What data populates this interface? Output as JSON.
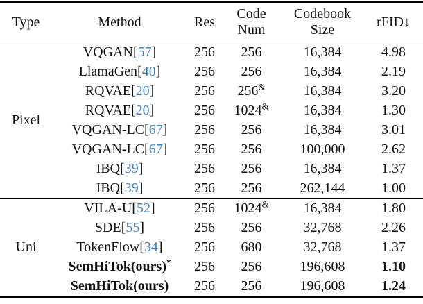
{
  "table": {
    "headers": {
      "type": "Type",
      "method": "Method",
      "res": "Res",
      "code_num": "Code\nNum",
      "codebook_size": "Codebook\nSize",
      "rfid": "rFID↓"
    },
    "groups": {
      "pixel": "Pixel",
      "uni": "Uni"
    },
    "rows": [
      {
        "method": "VQGAN",
        "open": "[",
        "cite": "57",
        "close": "]",
        "sup": "",
        "res": "256",
        "code": "256",
        "code_sup": "",
        "codebook": "16,384",
        "rfid": "4.98"
      },
      {
        "method": "LlamaGen",
        "open": "[",
        "cite": "40",
        "close": "]",
        "sup": "",
        "res": "256",
        "code": "256",
        "code_sup": "",
        "codebook": "16,384",
        "rfid": "2.19"
      },
      {
        "method": "RQVAE",
        "open": "[",
        "cite": "20",
        "close": "]",
        "sup": "",
        "res": "256",
        "code": "256",
        "code_sup": "&",
        "codebook": "16,384",
        "rfid": "3.20"
      },
      {
        "method": "RQVAE",
        "open": "[",
        "cite": "20",
        "close": "]",
        "sup": "",
        "res": "256",
        "code": "1024",
        "code_sup": "&",
        "codebook": "16,384",
        "rfid": "1.30"
      },
      {
        "method": "VQGAN-LC",
        "open": "[",
        "cite": "67",
        "close": "]",
        "sup": "",
        "res": "256",
        "code": "256",
        "code_sup": "",
        "codebook": "16,384",
        "rfid": "3.01"
      },
      {
        "method": "VQGAN-LC",
        "open": "[",
        "cite": "67",
        "close": "]",
        "sup": "",
        "res": "256",
        "code": "256",
        "code_sup": "",
        "codebook": "100,000",
        "rfid": "2.62"
      },
      {
        "method": "IBQ",
        "open": "[",
        "cite": "39",
        "close": "]",
        "sup": "",
        "res": "256",
        "code": "256",
        "code_sup": "",
        "codebook": "16,384",
        "rfid": "1.37"
      },
      {
        "method": "IBQ",
        "open": "[",
        "cite": "39",
        "close": "]",
        "sup": "",
        "res": "256",
        "code": "256",
        "code_sup": "",
        "codebook": "262,144",
        "rfid": "1.00"
      },
      {
        "method": "VILA-U",
        "open": "[",
        "cite": "52",
        "close": "]",
        "sup": "",
        "res": "256",
        "code": "1024",
        "code_sup": "&",
        "codebook": "16,384",
        "rfid": "1.80"
      },
      {
        "method": "SDE",
        "open": "[",
        "cite": "55",
        "close": "]",
        "sup": "",
        "res": "256",
        "code": "256",
        "code_sup": "",
        "codebook": "32,768",
        "rfid": "2.26"
      },
      {
        "method": "TokenFlow",
        "open": "[",
        "cite": "34",
        "close": "]",
        "sup": "",
        "res": "256",
        "code": "680",
        "code_sup": "",
        "codebook": "32,768",
        "rfid": "1.37"
      },
      {
        "method": "SemHiTok(ours)",
        "open": "",
        "cite": "",
        "close": "",
        "sup": "*",
        "res": "256",
        "code": "256",
        "code_sup": "",
        "codebook": "196,608",
        "rfid": "1.10"
      },
      {
        "method": "SemHiTok(ours)",
        "open": "",
        "cite": "",
        "close": "",
        "sup": "",
        "res": "256",
        "code": "256",
        "code_sup": "",
        "codebook": "196,608",
        "rfid": "1.24"
      }
    ]
  },
  "colors": {
    "citation_blue": "#3f7fbe",
    "text": "#121212",
    "rule": "#000000"
  }
}
